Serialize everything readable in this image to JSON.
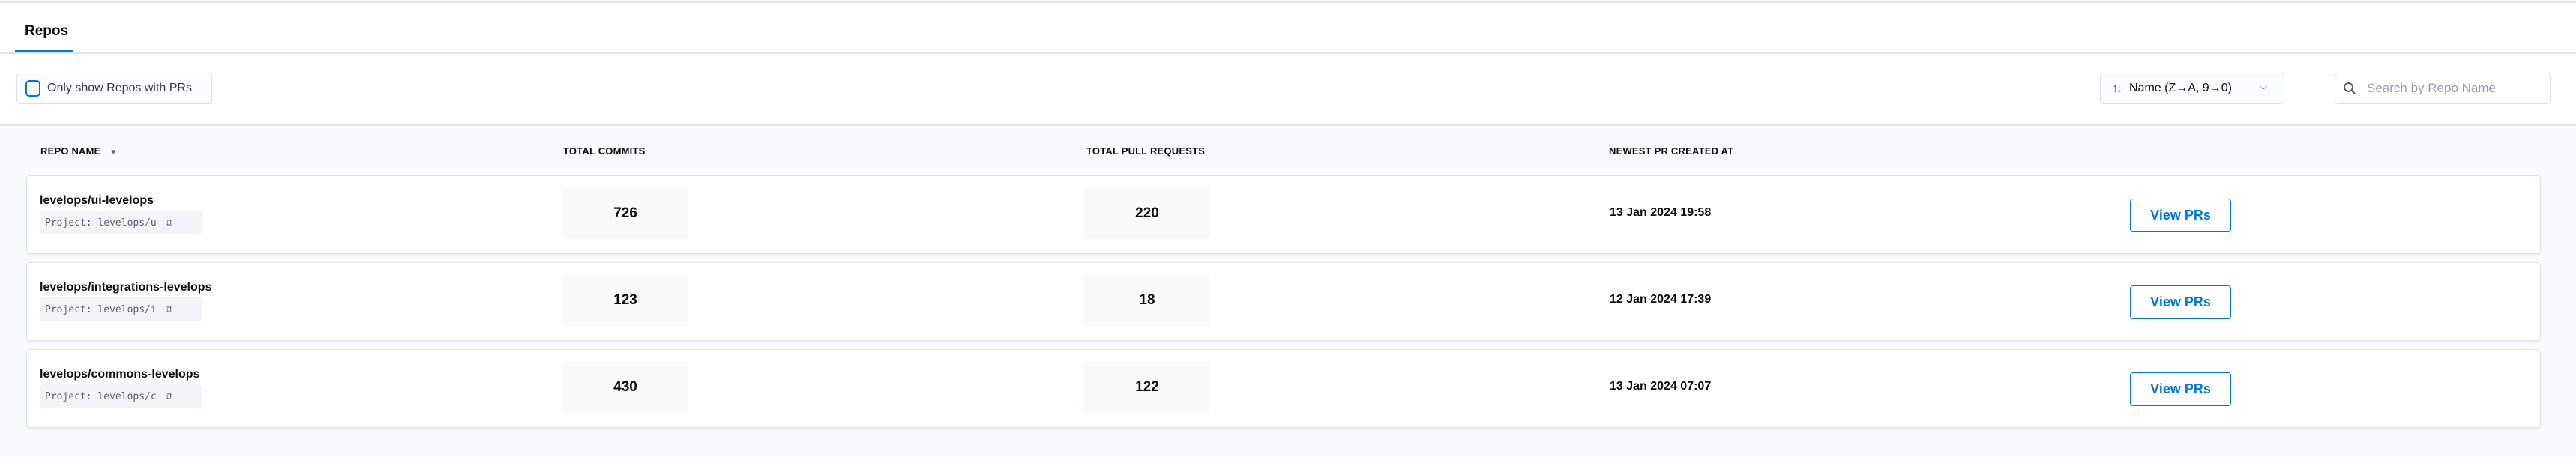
{
  "tabs": [
    {
      "label": "Repos",
      "active": true
    }
  ],
  "filters": {
    "only_with_prs_label": "Only show Repos with PRs",
    "only_with_prs_checked": false
  },
  "sort": {
    "value": "Name (Z→A, 9→0)",
    "icon": "sort-arrows-icon"
  },
  "search": {
    "placeholder": "Search by Repo Name",
    "value": ""
  },
  "colors": {
    "accent": "#0278d5"
  },
  "table": {
    "columns": [
      "REPO NAME",
      "TOTAL COMMITS",
      "TOTAL PULL REQUESTS",
      "NEWEST PR CREATED AT"
    ],
    "rows": [
      {
        "name": "levelops/ui-levelops",
        "project": "Project: levelops/u",
        "commits": "726",
        "prs": "220",
        "newest": "13 Jan 2024 19:58",
        "action": "View PRs"
      },
      {
        "name": "levelops/integrations-levelops",
        "project": "Project: levelops/i",
        "commits": "123",
        "prs": "18",
        "newest": "12 Jan 2024 17:39",
        "action": "View PRs"
      },
      {
        "name": "levelops/commons-levelops",
        "project": "Project: levelops/c",
        "commits": "430",
        "prs": "122",
        "newest": "13 Jan 2024 07:07",
        "action": "View PRs"
      }
    ]
  }
}
